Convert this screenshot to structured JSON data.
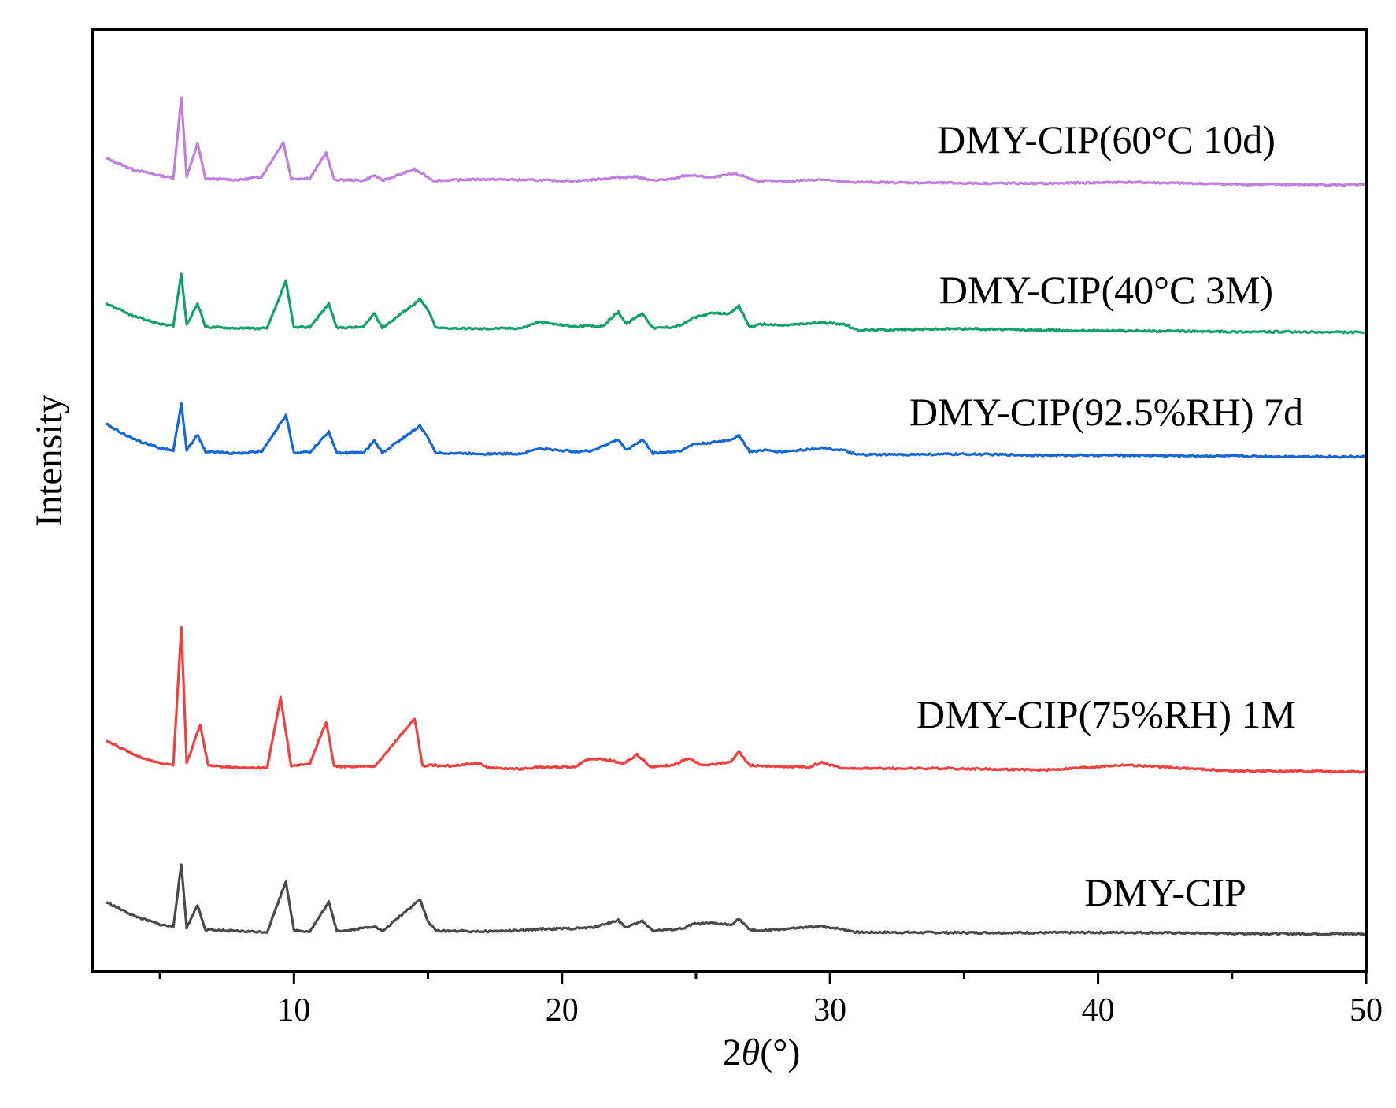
{
  "chart_data": {
    "type": "line",
    "title": "",
    "xlabel_prefix": "2",
    "xlabel_symbol": "θ",
    "xlabel_suffix": "(°)",
    "ylabel": "Intensity",
    "xlim": [
      2.5,
      50
    ],
    "xticks": [
      10,
      20,
      30,
      40,
      50
    ],
    "xminor_ticks": [
      5,
      15,
      25,
      35,
      45
    ],
    "yticks": [],
    "grid": false,
    "legend": "none (series labelled inline, right side)",
    "series": [
      {
        "name": "DMY-CIP(60°C 10d)",
        "color": "#c07ee0",
        "baseline": 0.19,
        "points": [
          [
            2.5,
            2.4
          ],
          [
            3,
            1.6
          ],
          [
            4,
            0.85
          ],
          [
            5,
            0.45
          ],
          [
            5.5,
            0.3
          ],
          [
            5.8,
            5.7
          ],
          [
            6.0,
            0.35
          ],
          [
            6.4,
            2.6
          ],
          [
            6.7,
            0.25
          ],
          [
            8,
            0.18
          ],
          [
            8.8,
            0.4
          ],
          [
            9.6,
            2.7
          ],
          [
            9.9,
            0.25
          ],
          [
            10.6,
            0.3
          ],
          [
            11.2,
            2.0
          ],
          [
            11.5,
            0.2
          ],
          [
            12.6,
            0.15
          ],
          [
            13.0,
            0.5
          ],
          [
            13.3,
            0.15
          ],
          [
            14.5,
            0.9
          ],
          [
            14.9,
            0.5
          ],
          [
            15.2,
            0.15
          ],
          [
            17,
            0.25
          ],
          [
            19.1,
            0.2
          ],
          [
            20.5,
            0.15
          ],
          [
            21.5,
            0.3
          ],
          [
            22.1,
            0.4
          ],
          [
            22.8,
            0.45
          ],
          [
            23.3,
            0.2
          ],
          [
            24.2,
            0.3
          ],
          [
            24.5,
            0.5
          ],
          [
            24.8,
            0.55
          ],
          [
            25.6,
            0.4
          ],
          [
            26.4,
            0.65
          ],
          [
            26.8,
            0.5
          ],
          [
            27.2,
            0.2
          ],
          [
            28.2,
            0.15
          ],
          [
            29.7,
            0.3
          ],
          [
            30.5,
            0.12
          ],
          [
            35,
            0.06
          ],
          [
            38,
            0.05
          ],
          [
            41,
            0.15
          ],
          [
            45,
            0.03
          ],
          [
            50,
            0
          ]
        ]
      },
      {
        "name": "DMY-CIP(40°C 3M)",
        "color": "#13a16a",
        "baseline": 0.13,
        "points": [
          [
            2.5,
            2.5
          ],
          [
            3,
            1.8
          ],
          [
            4,
            0.95
          ],
          [
            5,
            0.45
          ],
          [
            5.5,
            0.3
          ],
          [
            5.8,
            3.8
          ],
          [
            6.0,
            0.35
          ],
          [
            6.4,
            1.8
          ],
          [
            6.7,
            0.25
          ],
          [
            8,
            0.15
          ],
          [
            9.0,
            0.15
          ],
          [
            9.7,
            3.3
          ],
          [
            10.0,
            0.2
          ],
          [
            10.6,
            0.25
          ],
          [
            11.3,
            1.8
          ],
          [
            11.6,
            0.2
          ],
          [
            12.6,
            0.25
          ],
          [
            13.0,
            1.2
          ],
          [
            13.3,
            0.2
          ],
          [
            14.7,
            2.1
          ],
          [
            15.0,
            1.4
          ],
          [
            15.3,
            0.2
          ],
          [
            17,
            0.15
          ],
          [
            18.5,
            0.2
          ],
          [
            19.1,
            0.6
          ],
          [
            20.5,
            0.3
          ],
          [
            21.1,
            0.35
          ],
          [
            21.5,
            0.3
          ],
          [
            22.1,
            1.3
          ],
          [
            22.4,
            0.5
          ],
          [
            23.0,
            1.2
          ],
          [
            23.4,
            0.2
          ],
          [
            24.2,
            0.3
          ],
          [
            24.5,
            0.45
          ],
          [
            24.9,
            0.9
          ],
          [
            25.6,
            1.2
          ],
          [
            26.3,
            1.2
          ],
          [
            26.6,
            1.7
          ],
          [
            27.0,
            0.3
          ],
          [
            27.5,
            0.5
          ],
          [
            28.2,
            0.4
          ],
          [
            29.7,
            0.6
          ],
          [
            30.5,
            0.5
          ],
          [
            31,
            0.1
          ],
          [
            35,
            0.2
          ],
          [
            38,
            0.1
          ],
          [
            41,
            0.08
          ],
          [
            45,
            0.03
          ],
          [
            50,
            0
          ]
        ]
      },
      {
        "name": "DMY-CIP(92.5%RH) 7d",
        "color": "#1667d6",
        "baseline": 0.08,
        "points": [
          [
            2.5,
            2.7
          ],
          [
            3,
            2.1
          ],
          [
            4,
            1.1
          ],
          [
            5,
            0.5
          ],
          [
            5.5,
            0.35
          ],
          [
            5.8,
            3.5
          ],
          [
            6.0,
            0.35
          ],
          [
            6.4,
            1.4
          ],
          [
            6.7,
            0.25
          ],
          [
            8,
            0.15
          ],
          [
            8.8,
            0.3
          ],
          [
            9.7,
            2.7
          ],
          [
            10.0,
            0.2
          ],
          [
            10.6,
            0.25
          ],
          [
            11.3,
            1.6
          ],
          [
            11.6,
            0.2
          ],
          [
            12.6,
            0.2
          ],
          [
            13.0,
            1.0
          ],
          [
            13.3,
            0.2
          ],
          [
            14.7,
            2.0
          ],
          [
            15.0,
            1.2
          ],
          [
            15.3,
            0.2
          ],
          [
            17,
            0.15
          ],
          [
            18.5,
            0.15
          ],
          [
            19.1,
            0.5
          ],
          [
            20.5,
            0.3
          ],
          [
            21.1,
            0.35
          ],
          [
            22.1,
            1.1
          ],
          [
            22.4,
            0.4
          ],
          [
            23.0,
            1.1
          ],
          [
            23.4,
            0.2
          ],
          [
            24.2,
            0.3
          ],
          [
            24.5,
            0.4
          ],
          [
            24.9,
            0.8
          ],
          [
            25.6,
            0.9
          ],
          [
            26.3,
            1.1
          ],
          [
            26.6,
            1.4
          ],
          [
            27.0,
            0.3
          ],
          [
            27.5,
            0.4
          ],
          [
            28.2,
            0.3
          ],
          [
            29.7,
            0.55
          ],
          [
            30.5,
            0.4
          ],
          [
            31,
            0.1
          ],
          [
            35,
            0.15
          ],
          [
            38,
            0.08
          ],
          [
            41,
            0.08
          ],
          [
            45,
            0.03
          ],
          [
            50,
            0
          ]
        ]
      },
      {
        "name": "DMY-CIP(75%RH) 1M",
        "color": "#f23f3f",
        "baseline": 0.06,
        "points": [
          [
            2.5,
            2.6
          ],
          [
            3,
            2.0
          ],
          [
            4,
            1.1
          ],
          [
            5,
            0.5
          ],
          [
            5.5,
            0.4
          ],
          [
            5.8,
            9.6
          ],
          [
            6.0,
            0.5
          ],
          [
            6.5,
            3.1
          ],
          [
            6.8,
            0.35
          ],
          [
            8,
            0.2
          ],
          [
            9.0,
            0.2
          ],
          [
            9.5,
            4.9
          ],
          [
            9.9,
            0.3
          ],
          [
            10.6,
            0.5
          ],
          [
            11.2,
            3.3
          ],
          [
            11.5,
            0.3
          ],
          [
            12.0,
            0.3
          ],
          [
            13.0,
            0.3
          ],
          [
            14.5,
            3.5
          ],
          [
            14.8,
            0.35
          ],
          [
            15.1,
            0.4
          ],
          [
            15.8,
            0.35
          ],
          [
            16.9,
            0.55
          ],
          [
            17.3,
            0.2
          ],
          [
            18.5,
            0.15
          ],
          [
            19.1,
            0.25
          ],
          [
            20.5,
            0.3
          ],
          [
            20.9,
            0.8
          ],
          [
            21.5,
            0.8
          ],
          [
            21.9,
            0.7
          ],
          [
            22.3,
            0.5
          ],
          [
            22.8,
            1.1
          ],
          [
            23.3,
            0.3
          ],
          [
            24.1,
            0.4
          ],
          [
            24.5,
            0.7
          ],
          [
            24.8,
            0.85
          ],
          [
            25.2,
            0.4
          ],
          [
            25.8,
            0.5
          ],
          [
            26.3,
            0.6
          ],
          [
            26.6,
            1.3
          ],
          [
            27.0,
            0.4
          ],
          [
            28.2,
            0.3
          ],
          [
            29.2,
            0.3
          ],
          [
            29.7,
            0.6
          ],
          [
            30.5,
            0.2
          ],
          [
            34.6,
            0.2
          ],
          [
            38,
            0.1
          ],
          [
            41,
            0.45
          ],
          [
            45,
            0.05
          ],
          [
            50,
            0
          ]
        ]
      },
      {
        "name": "DMY-CIP",
        "color": "#4a4a4a",
        "baseline": 0.03,
        "points": [
          [
            2.5,
            3.0
          ],
          [
            3,
            2.1
          ],
          [
            4,
            1.2
          ],
          [
            5,
            0.6
          ],
          [
            5.5,
            0.45
          ],
          [
            5.8,
            4.6
          ],
          [
            6.0,
            0.4
          ],
          [
            6.4,
            1.9
          ],
          [
            6.7,
            0.25
          ],
          [
            8,
            0.15
          ],
          [
            9.0,
            0.1
          ],
          [
            9.7,
            3.5
          ],
          [
            10.0,
            0.2
          ],
          [
            10.6,
            0.15
          ],
          [
            11.3,
            2.1
          ],
          [
            11.6,
            0.2
          ],
          [
            12.0,
            0.2
          ],
          [
            13.0,
            0.5
          ],
          [
            13.3,
            0.15
          ],
          [
            14.7,
            2.3
          ],
          [
            15.0,
            0.8
          ],
          [
            15.3,
            0.2
          ],
          [
            17,
            0.15
          ],
          [
            18.5,
            0.2
          ],
          [
            19.1,
            0.3
          ],
          [
            20.5,
            0.35
          ],
          [
            21.1,
            0.4
          ],
          [
            22.1,
            0.9
          ],
          [
            22.4,
            0.4
          ],
          [
            23.0,
            0.85
          ],
          [
            23.4,
            0.2
          ],
          [
            24.2,
            0.3
          ],
          [
            24.5,
            0.35
          ],
          [
            24.9,
            0.65
          ],
          [
            25.6,
            0.7
          ],
          [
            26.3,
            0.6
          ],
          [
            26.6,
            1.0
          ],
          [
            27.0,
            0.25
          ],
          [
            27.5,
            0.2
          ],
          [
            28.2,
            0.3
          ],
          [
            29.7,
            0.5
          ],
          [
            30.5,
            0.3
          ],
          [
            31,
            0.1
          ],
          [
            35,
            0.08
          ],
          [
            38,
            0.08
          ],
          [
            41,
            0.1
          ],
          [
            45,
            0.03
          ],
          [
            50,
            0
          ]
        ]
      }
    ]
  }
}
